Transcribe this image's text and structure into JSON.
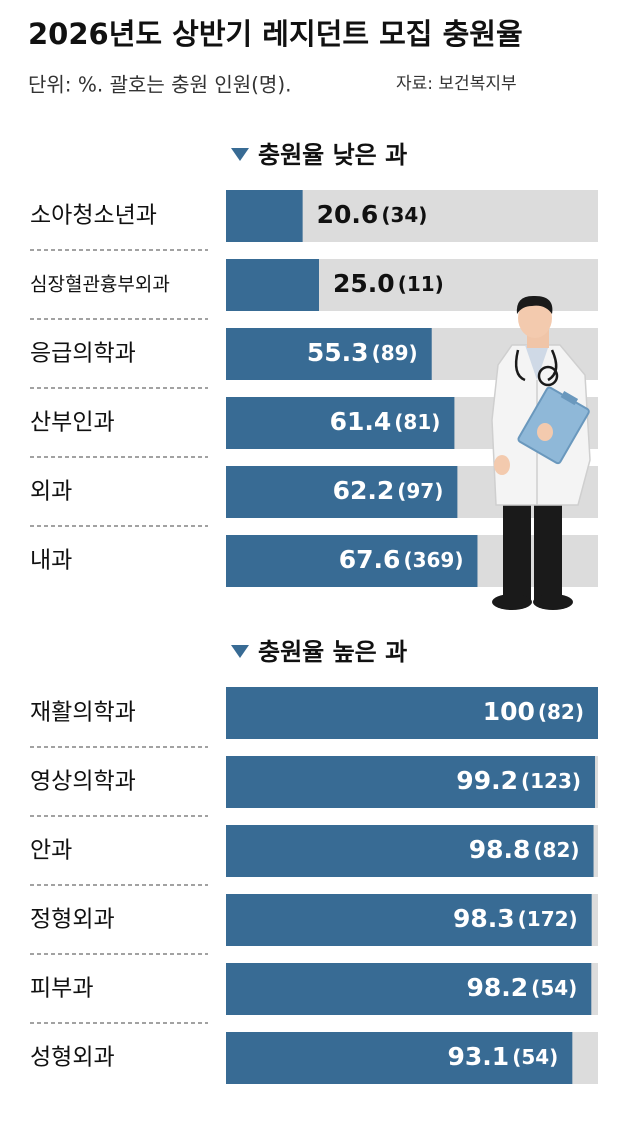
{
  "header": {
    "title": "2026년도 상반기 레지던트 모집 충원율",
    "subtitle": "단위: %. 괄호는 충원 인원(명).",
    "source": "자료: 보건복지부"
  },
  "chart_data": [
    {
      "type": "bar",
      "orientation": "horizontal",
      "title": "충원율 낮은 과",
      "color": "#386b94",
      "track_color": "#dcdcdc",
      "xlim": [
        0,
        100
      ],
      "categories": [
        "소아청소년과",
        "심장혈관흉부외과",
        "응급의학과",
        "산부인과",
        "외과",
        "내과"
      ],
      "values": [
        20.6,
        25.0,
        55.3,
        61.4,
        62.2,
        67.6
      ],
      "value_labels": [
        "20.6",
        "25.0",
        "55.3",
        "61.4",
        "62.2",
        "67.6"
      ],
      "annotations": [
        "(34)",
        "(11)",
        "(89)",
        "(81)",
        "(97)",
        "(369)"
      ]
    },
    {
      "type": "bar",
      "orientation": "horizontal",
      "title": "충원율 높은 과",
      "color": "#386b94",
      "track_color": "#dcdcdc",
      "xlim": [
        0,
        100
      ],
      "categories": [
        "재활의학과",
        "영상의학과",
        "안과",
        "정형외과",
        "피부과",
        "성형외과"
      ],
      "values": [
        100,
        99.2,
        98.8,
        98.3,
        98.2,
        93.1
      ],
      "value_labels": [
        "100",
        "99.2",
        "98.8",
        "98.3",
        "98.2",
        "93.1"
      ],
      "annotations": [
        "(82)",
        "(123)",
        "(82)",
        "(172)",
        "(54)",
        "(54)"
      ]
    }
  ]
}
